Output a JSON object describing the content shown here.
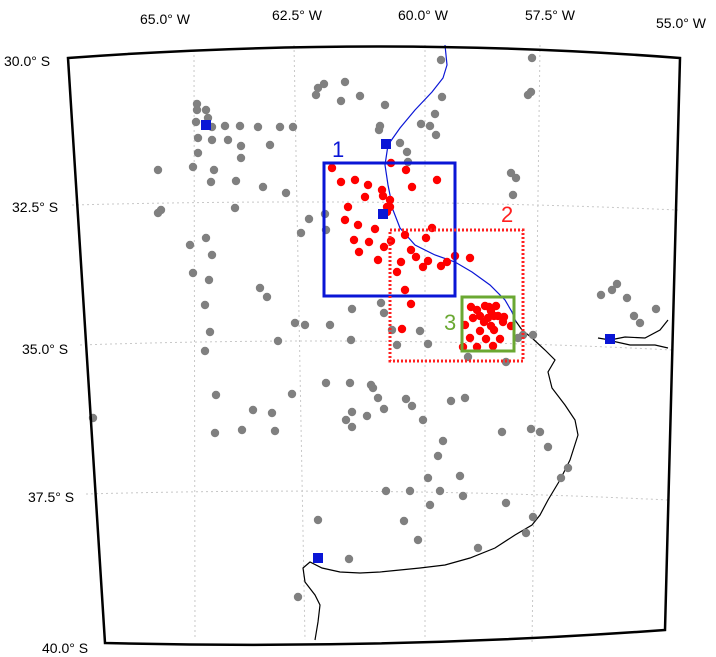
{
  "map": {
    "lon_labels": [
      "65.0° W",
      "62.5° W",
      "60.0° W",
      "57.5° W",
      "55.0° W"
    ],
    "lat_labels": [
      "30.0° S",
      "32.5° S",
      "35.0° S",
      "37.5° S",
      "40.0° S"
    ],
    "regions": [
      {
        "label": "1",
        "color": "#0a16d6",
        "style": "solid"
      },
      {
        "label": "2",
        "color": "#ff2020",
        "style": "dotted"
      },
      {
        "label": "3",
        "color": "#6aa832",
        "style": "solid"
      }
    ],
    "colors": {
      "gray_point": "#808080",
      "red_point": "#ff0000",
      "station_marker": "#0a16d6",
      "river": "#0a16d6",
      "coastline": "#000000",
      "frame": "#000000",
      "grid": "#c8c8c8"
    },
    "legend_layers": {
      "gray_points": "gray-station-points",
      "red_points": "red-study-points",
      "blue_markers": "blue-square-stations"
    }
  }
}
